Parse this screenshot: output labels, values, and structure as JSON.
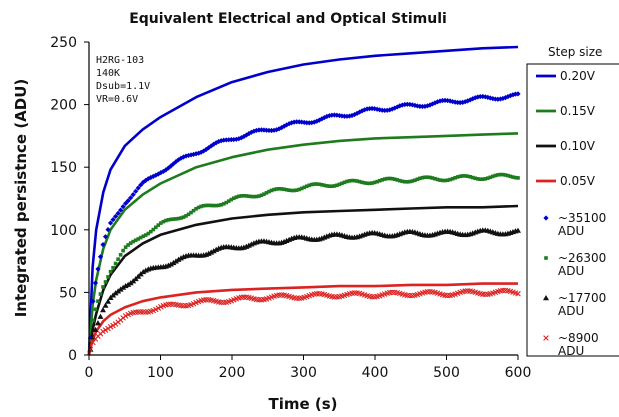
{
  "chart_data": {
    "type": "line",
    "title": "Equivalent Electrical and Optical Stimuli",
    "xlabel": "Time  (s)",
    "ylabel": "Integrated persistnce  (ADU)",
    "xlim": [
      0,
      600
    ],
    "ylim": [
      0,
      250
    ],
    "x_ticks": [
      "0",
      "100",
      "200",
      "300",
      "400",
      "500",
      "600"
    ],
    "y_ticks": [
      "0",
      "50",
      "100",
      "150",
      "200",
      "250"
    ],
    "x_tick_values": [
      0,
      100,
      200,
      300,
      400,
      500,
      600
    ],
    "y_tick_values": [
      0,
      50,
      100,
      150,
      200,
      250
    ],
    "grid": false,
    "legend": {
      "title": "Step size",
      "placement": "right"
    },
    "annotations": [
      "H2RG-103",
      "140K",
      "Dsub=1.1V",
      "VR=0.6V"
    ],
    "series": [
      {
        "name": "0.20V",
        "kind": "line",
        "color": "#0000cc",
        "x": [
          0,
          5,
          10,
          20,
          30,
          50,
          75,
          100,
          150,
          200,
          250,
          300,
          350,
          400,
          450,
          500,
          550,
          600
        ],
        "y": [
          0,
          70,
          100,
          130,
          148,
          167,
          180,
          190,
          206,
          218,
          226,
          232,
          236,
          239,
          241,
          243,
          245,
          246
        ]
      },
      {
        "name": "0.15V",
        "kind": "line",
        "color": "#1e7b1e",
        "x": [
          0,
          5,
          10,
          20,
          30,
          50,
          75,
          100,
          150,
          200,
          250,
          300,
          350,
          400,
          450,
          500,
          550,
          600
        ],
        "y": [
          0,
          40,
          60,
          85,
          100,
          116,
          128,
          137,
          150,
          158,
          164,
          168,
          171,
          173,
          174,
          175,
          176,
          177
        ]
      },
      {
        "name": "0.10V",
        "kind": "line",
        "color": "#111111",
        "x": [
          0,
          5,
          10,
          20,
          30,
          50,
          75,
          100,
          150,
          200,
          250,
          300,
          350,
          400,
          450,
          500,
          550,
          600
        ],
        "y": [
          0,
          20,
          33,
          52,
          64,
          79,
          89,
          96,
          104,
          109,
          112,
          114,
          115,
          116,
          117,
          118,
          118,
          119
        ]
      },
      {
        "name": "0.05V",
        "kind": "line",
        "color": "#dd2222",
        "x": [
          0,
          5,
          10,
          20,
          30,
          50,
          75,
          100,
          150,
          200,
          250,
          300,
          350,
          400,
          450,
          500,
          550,
          600
        ],
        "y": [
          0,
          12,
          19,
          27,
          32,
          38,
          43,
          46,
          50,
          52,
          53,
          54,
          55,
          55,
          56,
          56,
          57,
          57
        ]
      },
      {
        "name": "~35100 ADU",
        "kind": "scatter",
        "marker": "diamond",
        "color": "#0000cc",
        "x": [
          2,
          5,
          10,
          20,
          30,
          50,
          75,
          100,
          150,
          200,
          250,
          300,
          350,
          400,
          450,
          500,
          550,
          600
        ],
        "y": [
          15,
          42,
          62,
          88,
          104,
          122,
          136,
          147,
          162,
          173,
          180,
          186,
          191,
          196,
          199,
          202,
          205,
          207
        ]
      },
      {
        "name": "~26300 ADU",
        "kind": "scatter",
        "marker": "square",
        "color": "#1e7b1e",
        "x": [
          2,
          5,
          10,
          20,
          30,
          50,
          75,
          100,
          150,
          200,
          250,
          300,
          350,
          400,
          450,
          500,
          550,
          600
        ],
        "y": [
          10,
          25,
          38,
          56,
          68,
          84,
          96,
          104,
          116,
          124,
          130,
          134,
          137,
          139,
          140,
          141,
          142,
          143
        ]
      },
      {
        "name": "~17700 ADU",
        "kind": "scatter",
        "marker": "triangle",
        "color": "#111111",
        "x": [
          2,
          5,
          10,
          20,
          30,
          50,
          75,
          100,
          150,
          200,
          250,
          300,
          350,
          400,
          450,
          500,
          550,
          600
        ],
        "y": [
          6,
          15,
          23,
          36,
          44,
          56,
          65,
          71,
          80,
          86,
          90,
          93,
          95,
          96,
          97,
          97,
          98,
          98
        ]
      },
      {
        "name": "~8900 ADU",
        "kind": "scatter",
        "marker": "x",
        "color": "#dd2222",
        "x": [
          2,
          5,
          10,
          20,
          30,
          50,
          75,
          100,
          150,
          200,
          250,
          300,
          350,
          400,
          450,
          500,
          550,
          600
        ],
        "y": [
          3,
          8,
          12,
          19,
          24,
          30,
          35,
          38,
          42,
          44,
          46,
          47,
          48,
          48,
          49,
          49,
          50,
          50
        ]
      }
    ]
  }
}
